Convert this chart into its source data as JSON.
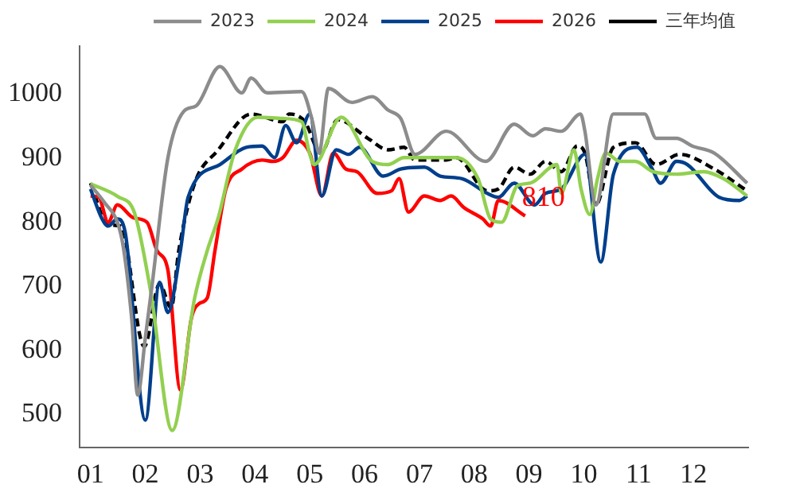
{
  "chart_data": {
    "type": "line",
    "xlim": [
      0.8,
      13
    ],
    "ylim": [
      448,
      1075
    ],
    "xticks": [
      {
        "value": 1,
        "label": "01"
      },
      {
        "value": 2,
        "label": "02"
      },
      {
        "value": 3,
        "label": "03"
      },
      {
        "value": 4,
        "label": "04"
      },
      {
        "value": 5,
        "label": "05"
      },
      {
        "value": 6,
        "label": "06"
      },
      {
        "value": 7,
        "label": "07"
      },
      {
        "value": 8,
        "label": "08"
      },
      {
        "value": 9,
        "label": "09"
      },
      {
        "value": 10,
        "label": "10"
      },
      {
        "value": 11,
        "label": "11"
      },
      {
        "value": 12,
        "label": "12"
      }
    ],
    "yticks": [
      500,
      600,
      700,
      800,
      900,
      1000
    ],
    "grid": false,
    "legend": "top",
    "marker": "none",
    "annotations": [
      {
        "text": "810",
        "x": 8.93,
        "y": 810
      }
    ],
    "series": [
      {
        "name": "2023",
        "color": "#8c8c8c",
        "line_style": "solid",
        "x": [
          1,
          1.26,
          1.49,
          1.6,
          1.75,
          1.86,
          2,
          2.12,
          2.41,
          2.7,
          2.93,
          3.36,
          3.76,
          3.93,
          4.22,
          4.85,
          5.05,
          5.17,
          5.34,
          5.77,
          6.14,
          6.43,
          6.66,
          6.92,
          7.49,
          8.21,
          8.73,
          9.07,
          9.3,
          9.59,
          9.94,
          10.02,
          10.22,
          10.54,
          11.11,
          11.32,
          11.69,
          11.98,
          12.38,
          12.98
        ],
        "values": [
          858,
          830,
          800,
          760,
          650,
          530,
          620,
          700,
          900,
          973,
          982,
          1043,
          1002,
          1025,
          1002,
          1004,
          957,
          908,
          1009,
          987,
          996,
          975,
          962,
          906,
          942,
          895,
          953,
          935,
          946,
          942,
          969,
          942,
          827,
          969,
          969,
          931,
          931,
          919,
          908,
          861
        ]
      },
      {
        "name": "2024",
        "color": "#92d050",
        "line_style": "solid",
        "x": [
          1,
          1.5,
          1.8,
          2.1,
          2.49,
          2.9,
          3.13,
          3.33,
          3.64,
          4.05,
          4.51,
          4.85,
          5,
          5.08,
          5.57,
          6.14,
          6.43,
          6.72,
          7.29,
          7.67,
          8.07,
          8.3,
          8.5,
          8.79,
          9.02,
          9.51,
          9.59,
          9.82,
          9.95,
          10.11,
          10.25,
          10.4,
          10.66,
          10.94,
          11.26,
          11.69,
          12.18,
          12.55,
          12.98
        ],
        "values": [
          860,
          840,
          815,
          690,
          475,
          682,
          756,
          807,
          913,
          964,
          962,
          957,
          906,
          890,
          964,
          895,
          890,
          901,
          901,
          901,
          868,
          805,
          800,
          857,
          861,
          890,
          845,
          913,
          852,
          812,
          868,
          908,
          895,
          895,
          879,
          875,
          879,
          868,
          841
        ]
      },
      {
        "name": "2025",
        "color": "#003f8c",
        "line_style": "solid",
        "x": [
          1,
          1.2,
          1.32,
          1.49,
          1.63,
          2,
          2.26,
          2.41,
          2.64,
          2.78,
          3.36,
          3.84,
          4.13,
          4.36,
          4.56,
          4.76,
          5,
          5.22,
          5.48,
          5.71,
          5.91,
          6.34,
          6.66,
          7.09,
          7.38,
          7.78,
          8.24,
          8.44,
          8.73,
          9.1,
          9.3,
          9.59,
          10.02,
          10.31,
          10.54,
          10.97,
          11.23,
          11.4,
          11.69,
          11.89,
          12.47,
          12.84,
          12.98
        ],
        "values": [
          852,
          807,
          794,
          805,
          785,
          491,
          706,
          659,
          756,
          839,
          890,
          917,
          919,
          901,
          951,
          924,
          969,
          841,
          913,
          906,
          917,
          872,
          883,
          886,
          872,
          868,
          845,
          839,
          861,
          827,
          845,
          852,
          906,
          738,
          875,
          917,
          886,
          861,
          895,
          890,
          839,
          834,
          841
        ]
      },
      {
        "name": "2026",
        "color": "#ff0000",
        "line_style": "solid",
        "x": [
          1,
          1.15,
          1.32,
          1.49,
          1.78,
          2.03,
          2.21,
          2.41,
          2.64,
          2.84,
          2.98,
          3.13,
          3.27,
          3.47,
          3.76,
          4.13,
          4.33,
          4.51,
          4.76,
          5,
          5.22,
          5.43,
          5.66,
          5.86,
          6.23,
          6.49,
          6.63,
          6.8,
          7.09,
          7.38,
          7.58,
          7.81,
          8.16,
          8.3,
          8.44,
          8.93
        ],
        "values": [
          841,
          839,
          800,
          827,
          807,
          800,
          756,
          726,
          538,
          650,
          673,
          682,
          756,
          852,
          883,
          897,
          895,
          901,
          928,
          908,
          841,
          908,
          883,
          879,
          845,
          849,
          868,
          816,
          841,
          834,
          841,
          823,
          805,
          794,
          834,
          810
        ]
      },
      {
        "name": "三年均值",
        "color": "#000000",
        "line_style": "dashed",
        "x": [
          1,
          1.32,
          1.55,
          1.98,
          2.26,
          2.47,
          2.61,
          2.9,
          3.33,
          3.93,
          4.51,
          4.62,
          4.91,
          5.2,
          5.51,
          6.06,
          6.43,
          6.72,
          6.92,
          7.49,
          7.67,
          8.24,
          8.44,
          8.73,
          9.02,
          9.3,
          9.59,
          9.88,
          10.02,
          10.22,
          10.54,
          10.94,
          11.32,
          11.75,
          12.38,
          12.98
        ],
        "values": [
          861,
          796,
          794,
          606,
          704,
          666,
          756,
          861,
          913,
          969,
          957,
          969,
          957,
          908,
          960,
          931,
          913,
          917,
          897,
          897,
          901,
          849,
          852,
          886,
          875,
          895,
          879,
          919,
          908,
          827,
          917,
          924,
          890,
          906,
          883,
          849
        ]
      }
    ]
  }
}
